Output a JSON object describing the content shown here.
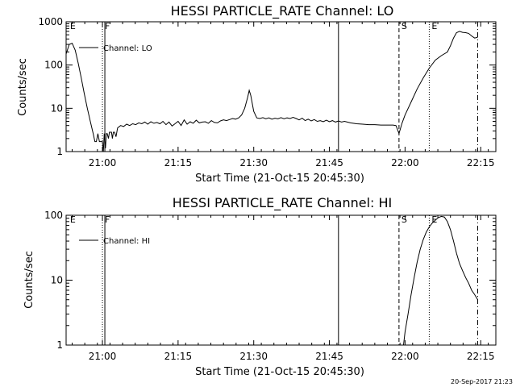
{
  "footer": {
    "timestamp": "20-Sep-2017 21:23"
  },
  "chart_data": [
    {
      "type": "line",
      "title": "HESSI PARTICLE_RATE Channel: LO",
      "xlabel": "Start Time (21-Oct-15 20:45:30)",
      "ylabel": "Counts/sec",
      "xlim": [
        20.88,
        22.3
      ],
      "ylim": [
        1,
        1000
      ],
      "yscale": "log",
      "xticks": [
        {
          "v": 21.0,
          "label": "21:00"
        },
        {
          "v": 21.25,
          "label": "21:15"
        },
        {
          "v": 21.5,
          "label": "21:30"
        },
        {
          "v": 21.75,
          "label": "21:45"
        },
        {
          "v": 22.0,
          "label": "22:00"
        },
        {
          "v": 22.25,
          "label": "22:15"
        }
      ],
      "yticks": [
        {
          "v": 1,
          "label": "1"
        },
        {
          "v": 10,
          "label": "10"
        },
        {
          "v": 100,
          "label": "100"
        },
        {
          "v": 1000,
          "label": "1000"
        }
      ],
      "legend": {
        "label": "Channel: LO",
        "placement": "top-left"
      },
      "markers": [
        {
          "label": "E",
          "x": 20.885,
          "style": "none"
        },
        {
          "label": "F",
          "x": 21.0,
          "style": "dotted"
        },
        {
          "label": "",
          "x": 21.008,
          "style": "solid"
        },
        {
          "label": "",
          "x": 21.78,
          "style": "solid"
        },
        {
          "label": "S",
          "x": 21.98,
          "style": "dashed"
        },
        {
          "label": "E",
          "x": 22.08,
          "style": "dotted"
        },
        {
          "label": "",
          "x": 22.24,
          "style": "dashdot"
        }
      ],
      "series": [
        {
          "name": "Channel: LO",
          "points": [
            [
              20.88,
              180
            ],
            [
              20.89,
              300
            ],
            [
              20.9,
              320
            ],
            [
              20.91,
              220
            ],
            [
              20.92,
              110
            ],
            [
              20.93,
              50
            ],
            [
              20.94,
              22
            ],
            [
              20.95,
              10
            ],
            [
              20.96,
              5
            ],
            [
              20.97,
              2.5
            ],
            [
              20.975,
              1.7
            ],
            [
              20.98,
              1.7
            ],
            [
              20.985,
              2.6
            ],
            [
              20.99,
              1.7
            ],
            [
              20.995,
              1.7
            ],
            [
              21.0,
              1.7
            ],
            [
              21.003,
              1.0
            ],
            [
              21.006,
              2.6
            ],
            [
              21.01,
              1.2
            ],
            [
              21.013,
              2.6
            ],
            [
              21.016,
              2.6
            ],
            [
              21.02,
              2.0
            ],
            [
              21.023,
              2.8
            ],
            [
              21.026,
              2.8
            ],
            [
              21.03,
              2.8
            ],
            [
              21.033,
              2.0
            ],
            [
              21.036,
              2.8
            ],
            [
              21.04,
              2.8
            ],
            [
              21.045,
              2.2
            ],
            [
              21.05,
              3.5
            ],
            [
              21.06,
              4.0
            ],
            [
              21.07,
              3.8
            ],
            [
              21.08,
              4.3
            ],
            [
              21.09,
              4.0
            ],
            [
              21.1,
              4.4
            ],
            [
              21.11,
              4.2
            ],
            [
              21.12,
              4.6
            ],
            [
              21.13,
              4.4
            ],
            [
              21.14,
              4.8
            ],
            [
              21.15,
              4.3
            ],
            [
              21.16,
              4.9
            ],
            [
              21.17,
              4.5
            ],
            [
              21.18,
              4.7
            ],
            [
              21.19,
              4.4
            ],
            [
              21.2,
              5.0
            ],
            [
              21.21,
              4.2
            ],
            [
              21.22,
              4.8
            ],
            [
              21.23,
              3.9
            ],
            [
              21.24,
              4.4
            ],
            [
              21.25,
              5.0
            ],
            [
              21.26,
              4.0
            ],
            [
              21.27,
              5.4
            ],
            [
              21.28,
              4.3
            ],
            [
              21.29,
              4.9
            ],
            [
              21.3,
              4.5
            ],
            [
              21.31,
              5.3
            ],
            [
              21.32,
              4.6
            ],
            [
              21.33,
              4.8
            ],
            [
              21.34,
              4.9
            ],
            [
              21.35,
              4.5
            ],
            [
              21.36,
              5.2
            ],
            [
              21.37,
              4.7
            ],
            [
              21.38,
              4.6
            ],
            [
              21.39,
              5.1
            ],
            [
              21.4,
              5.4
            ],
            [
              21.41,
              5.2
            ],
            [
              21.42,
              5.5
            ],
            [
              21.43,
              5.8
            ],
            [
              21.44,
              5.6
            ],
            [
              21.45,
              6.0
            ],
            [
              21.46,
              7.0
            ],
            [
              21.47,
              10.0
            ],
            [
              21.48,
              18.0
            ],
            [
              21.485,
              26.0
            ],
            [
              21.49,
              20.0
            ],
            [
              21.5,
              8.5
            ],
            [
              21.51,
              6.0
            ],
            [
              21.52,
              5.8
            ],
            [
              21.53,
              6.1
            ],
            [
              21.54,
              5.7
            ],
            [
              21.55,
              6.0
            ],
            [
              21.56,
              5.6
            ],
            [
              21.57,
              5.9
            ],
            [
              21.58,
              5.7
            ],
            [
              21.59,
              6.1
            ],
            [
              21.6,
              5.7
            ],
            [
              21.61,
              6.0
            ],
            [
              21.62,
              5.8
            ],
            [
              21.63,
              6.2
            ],
            [
              21.64,
              5.8
            ],
            [
              21.65,
              5.4
            ],
            [
              21.66,
              5.9
            ],
            [
              21.67,
              5.2
            ],
            [
              21.68,
              5.6
            ],
            [
              21.69,
              5.1
            ],
            [
              21.7,
              5.5
            ],
            [
              21.71,
              5.0
            ],
            [
              21.72,
              5.2
            ],
            [
              21.73,
              4.9
            ],
            [
              21.74,
              5.3
            ],
            [
              21.75,
              4.9
            ],
            [
              21.76,
              5.2
            ],
            [
              21.77,
              4.8
            ],
            [
              21.78,
              5.1
            ],
            [
              21.79,
              4.8
            ],
            [
              21.8,
              5.0
            ],
            [
              21.82,
              4.6
            ],
            [
              21.84,
              4.4
            ],
            [
              21.86,
              4.3
            ],
            [
              21.88,
              4.2
            ],
            [
              21.9,
              4.2
            ],
            [
              21.92,
              4.1
            ],
            [
              21.94,
              4.1
            ],
            [
              21.96,
              4.1
            ],
            [
              21.97,
              4.0
            ],
            [
              21.98,
              2.6
            ],
            [
              21.99,
              4.5
            ],
            [
              22.0,
              7.0
            ],
            [
              22.02,
              14.0
            ],
            [
              22.04,
              28.0
            ],
            [
              22.06,
              50.0
            ],
            [
              22.08,
              85.0
            ],
            [
              22.1,
              130.0
            ],
            [
              22.12,
              165.0
            ],
            [
              22.14,
              200.0
            ],
            [
              22.15,
              280.0
            ],
            [
              22.16,
              420.0
            ],
            [
              22.17,
              560.0
            ],
            [
              22.18,
              600.0
            ],
            [
              22.19,
              570.0
            ],
            [
              22.2,
              560.0
            ],
            [
              22.21,
              540.0
            ],
            [
              22.22,
              470.0
            ],
            [
              22.23,
              420.0
            ],
            [
              22.24,
              440.0
            ]
          ]
        }
      ]
    },
    {
      "type": "line",
      "title": "HESSI PARTICLE_RATE Channel: HI",
      "xlabel": "Start Time (21-Oct-15 20:45:30)",
      "ylabel": "Counts/sec",
      "xlim": [
        20.88,
        22.3
      ],
      "ylim": [
        1,
        100
      ],
      "yscale": "log",
      "xticks": [
        {
          "v": 21.0,
          "label": "21:00"
        },
        {
          "v": 21.25,
          "label": "21:15"
        },
        {
          "v": 21.5,
          "label": "21:30"
        },
        {
          "v": 21.75,
          "label": "21:45"
        },
        {
          "v": 22.0,
          "label": "22:00"
        },
        {
          "v": 22.25,
          "label": "22:15"
        }
      ],
      "yticks": [
        {
          "v": 1,
          "label": "1"
        },
        {
          "v": 10,
          "label": "10"
        },
        {
          "v": 100,
          "label": "100"
        }
      ],
      "legend": {
        "label": "Channel: HI",
        "placement": "top-left"
      },
      "markers": [
        {
          "label": "E",
          "x": 20.885,
          "style": "none"
        },
        {
          "label": "F",
          "x": 21.0,
          "style": "dotted"
        },
        {
          "label": "",
          "x": 21.008,
          "style": "solid"
        },
        {
          "label": "",
          "x": 21.78,
          "style": "solid"
        },
        {
          "label": "S",
          "x": 21.98,
          "style": "dashed"
        },
        {
          "label": "E",
          "x": 22.08,
          "style": "dotted"
        },
        {
          "label": "",
          "x": 22.24,
          "style": "dashdot"
        }
      ],
      "series": [
        {
          "name": "Channel: HI",
          "points": [
            [
              21.995,
              1.0
            ],
            [
              22.0,
              1.6
            ],
            [
              22.01,
              3.0
            ],
            [
              22.02,
              6.0
            ],
            [
              22.03,
              11.0
            ],
            [
              22.04,
              19.0
            ],
            [
              22.05,
              30.0
            ],
            [
              22.06,
              42.0
            ],
            [
              22.07,
              55.0
            ],
            [
              22.08,
              66.0
            ],
            [
              22.09,
              76.0
            ],
            [
              22.1,
              84.0
            ],
            [
              22.11,
              92.0
            ],
            [
              22.12,
              96.0
            ],
            [
              22.13,
              94.0
            ],
            [
              22.14,
              80.0
            ],
            [
              22.15,
              60.0
            ],
            [
              22.16,
              40.0
            ],
            [
              22.17,
              26.0
            ],
            [
              22.18,
              18.0
            ],
            [
              22.19,
              14.0
            ],
            [
              22.2,
              11.0
            ],
            [
              22.21,
              9.0
            ],
            [
              22.22,
              7.0
            ],
            [
              22.23,
              6.0
            ],
            [
              22.24,
              5.0
            ]
          ]
        }
      ]
    }
  ]
}
